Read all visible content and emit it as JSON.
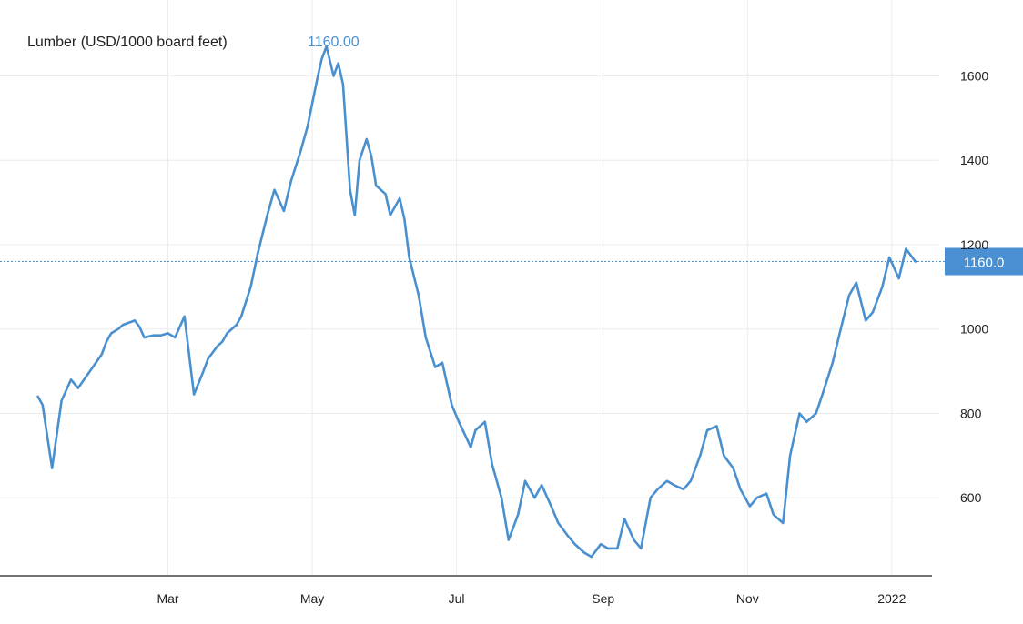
{
  "chart_data": {
    "type": "line",
    "title": "",
    "xlabel": "",
    "ylabel": "",
    "series": [
      {
        "name": "Lumber (USD/1000 board feet)",
        "color": "#4a90cf",
        "x": [
          "2021-01-05",
          "2021-01-07",
          "2021-01-11",
          "2021-01-13",
          "2021-01-15",
          "2021-01-19",
          "2021-01-22",
          "2021-01-27",
          "2021-02-01",
          "2021-02-03",
          "2021-02-05",
          "2021-02-08",
          "2021-02-10",
          "2021-02-15",
          "2021-02-17",
          "2021-02-19",
          "2021-02-23",
          "2021-02-26",
          "2021-03-01",
          "2021-03-04",
          "2021-03-08",
          "2021-03-12",
          "2021-03-16",
          "2021-03-18",
          "2021-03-22",
          "2021-03-24",
          "2021-03-26",
          "2021-03-30",
          "2021-04-01",
          "2021-04-05",
          "2021-04-08",
          "2021-04-12",
          "2021-04-15",
          "2021-04-19",
          "2021-04-22",
          "2021-04-26",
          "2021-04-29",
          "2021-05-03",
          "2021-05-05",
          "2021-05-07",
          "2021-05-10",
          "2021-05-12",
          "2021-05-14",
          "2021-05-17",
          "2021-05-19",
          "2021-05-21",
          "2021-05-24",
          "2021-05-26",
          "2021-05-28",
          "2021-06-01",
          "2021-06-03",
          "2021-06-07",
          "2021-06-09",
          "2021-06-11",
          "2021-06-15",
          "2021-06-18",
          "2021-06-22",
          "2021-06-25",
          "2021-06-29",
          "2021-07-02",
          "2021-07-07",
          "2021-07-09",
          "2021-07-13",
          "2021-07-16",
          "2021-07-20",
          "2021-07-23",
          "2021-07-27",
          "2021-07-30",
          "2021-08-03",
          "2021-08-06",
          "2021-08-10",
          "2021-08-13",
          "2021-08-17",
          "2021-08-20",
          "2021-08-24",
          "2021-08-27",
          "2021-08-31",
          "2021-09-03",
          "2021-09-07",
          "2021-09-10",
          "2021-09-14",
          "2021-09-17",
          "2021-09-21",
          "2021-09-24",
          "2021-09-28",
          "2021-10-01",
          "2021-10-05",
          "2021-10-08",
          "2021-10-12",
          "2021-10-15",
          "2021-10-19",
          "2021-10-22",
          "2021-10-26",
          "2021-10-29",
          "2021-11-02",
          "2021-11-05",
          "2021-11-09",
          "2021-11-12",
          "2021-11-16",
          "2021-11-19",
          "2021-11-23",
          "2021-11-26",
          "2021-11-30",
          "2021-12-03",
          "2021-12-07",
          "2021-12-10",
          "2021-12-14",
          "2021-12-17",
          "2021-12-21",
          "2021-12-24",
          "2021-12-28",
          "2021-12-31",
          "2022-01-04",
          "2022-01-07",
          "2022-01-11"
        ],
        "y": [
          840,
          820,
          670,
          750,
          830,
          880,
          860,
          900,
          940,
          970,
          990,
          1000,
          1010,
          1020,
          1005,
          980,
          985,
          985,
          990,
          980,
          1030,
          845,
          900,
          930,
          960,
          970,
          990,
          1010,
          1030,
          1100,
          1180,
          1270,
          1330,
          1280,
          1350,
          1420,
          1480,
          1590,
          1640,
          1670,
          1600,
          1630,
          1580,
          1330,
          1270,
          1400,
          1450,
          1410,
          1340,
          1320,
          1270,
          1310,
          1260,
          1170,
          1080,
          980,
          910,
          920,
          820,
          780,
          720,
          760,
          780,
          680,
          600,
          500,
          560,
          640,
          600,
          630,
          580,
          540,
          510,
          490,
          470,
          460,
          490,
          480,
          480,
          550,
          500,
          480,
          600,
          620,
          640,
          630,
          620,
          640,
          700,
          760,
          770,
          700,
          670,
          620,
          580,
          600,
          610,
          560,
          540,
          700,
          800,
          780,
          800,
          850,
          920,
          990,
          1080,
          1110,
          1020,
          1040,
          1100,
          1170,
          1120,
          1190,
          1160
        ]
      }
    ],
    "last_value": "1160.00",
    "last_value_tag": "1160.0",
    "ylim": [
      415,
      1780
    ],
    "xlim": [
      "2020-12-20",
      "2022-01-18"
    ],
    "y_ticks": [
      600,
      800,
      1000,
      1200,
      1400,
      1600
    ],
    "x_ticks": [
      {
        "date": "2021-03-01",
        "label": "Mar"
      },
      {
        "date": "2021-05-01",
        "label": "May"
      },
      {
        "date": "2021-07-01",
        "label": "Jul"
      },
      {
        "date": "2021-09-01",
        "label": "Sep"
      },
      {
        "date": "2021-11-01",
        "label": "Nov"
      },
      {
        "date": "2022-01-01",
        "label": "2022"
      }
    ],
    "grid": true,
    "y_axis_position": "right",
    "legend_position": "top-left"
  },
  "colors": {
    "line": "#4a90cf",
    "tag_bg": "#4a8fd1",
    "grid": "#ececec",
    "axis": "#222222",
    "value_text": "#4a90cf"
  }
}
